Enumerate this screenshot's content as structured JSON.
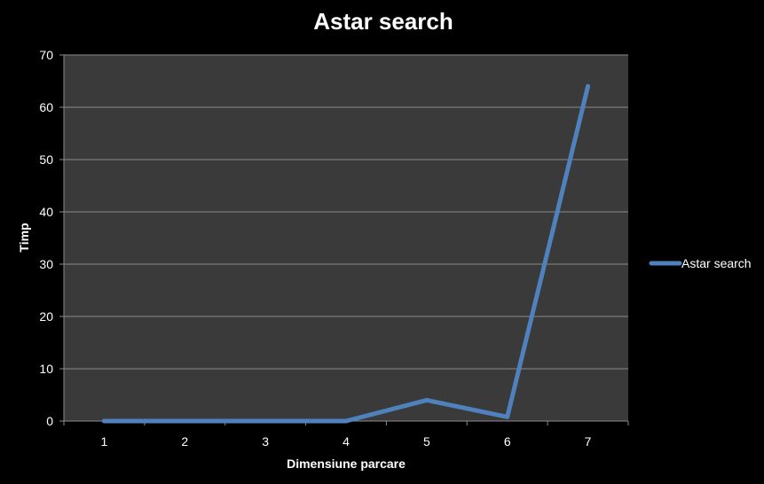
{
  "chart_data": {
    "type": "line",
    "title": "Astar search",
    "xlabel": "Dimensiune parcare",
    "ylabel": "Timp",
    "categories": [
      "1",
      "2",
      "3",
      "4",
      "5",
      "6",
      "7"
    ],
    "series": [
      {
        "name": "Astar search",
        "values": [
          0,
          0,
          0,
          0,
          4,
          0.8,
          64
        ]
      }
    ],
    "ylim": [
      0,
      70
    ],
    "yticks": [
      "0",
      "10",
      "20",
      "30",
      "40",
      "50",
      "60",
      "70"
    ],
    "grid": true,
    "legend_position": "right",
    "colors": {
      "background": "#000000",
      "plot_area": "#3a3a3a",
      "gridline": "#8a8a8a",
      "series": "#4f81bd",
      "text": "#ffffff"
    }
  }
}
